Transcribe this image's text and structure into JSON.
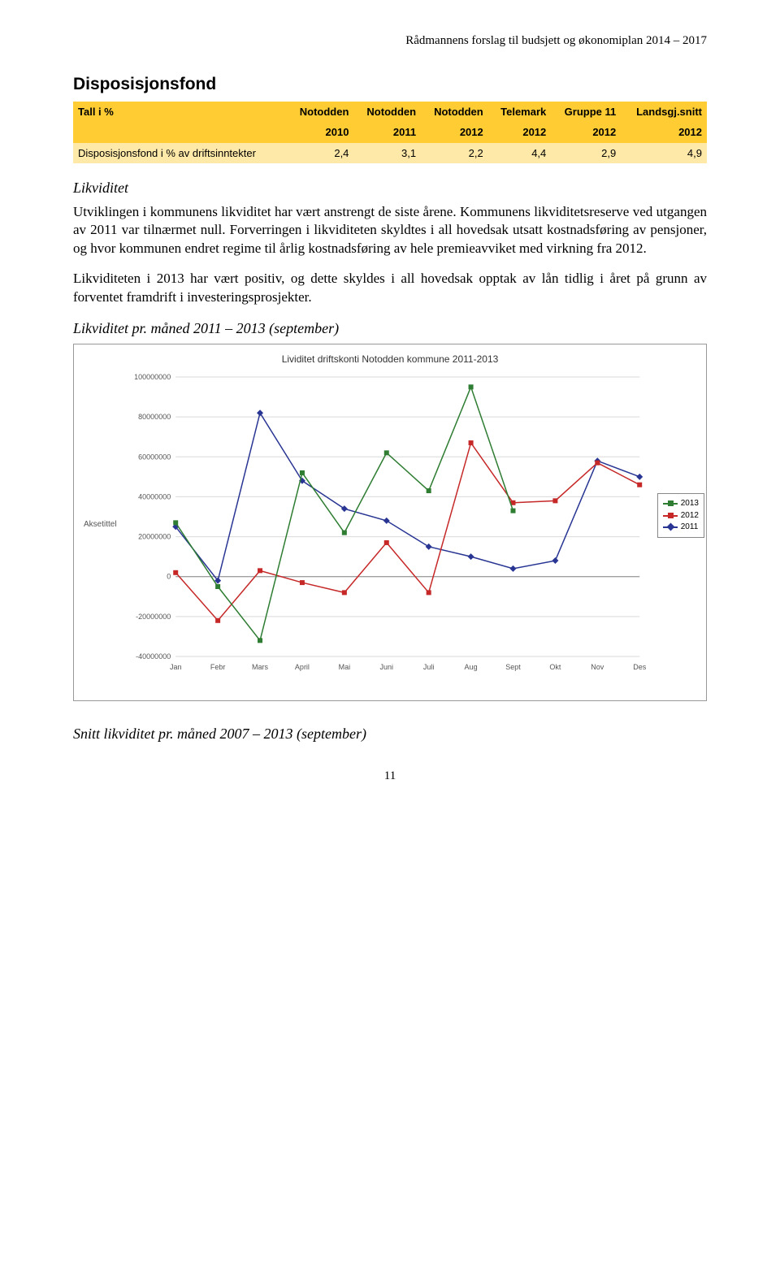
{
  "header": "Rådmannens forslag til budsjett og økonomiplan 2014 – 2017",
  "section_title": "Disposisjonsfond",
  "table": {
    "row1_label": "Tall i %",
    "cols_top": [
      "Notodden",
      "Notodden",
      "Notodden",
      "Telemark",
      "Gruppe 11",
      "Landsgj.snitt"
    ],
    "cols_bot": [
      "2010",
      "2011",
      "2012",
      "2012",
      "2012",
      "2012"
    ],
    "data_label": "Disposisjonsfond i % av driftsinntekter",
    "data_vals": [
      "2,4",
      "3,1",
      "2,2",
      "4,4",
      "2,9",
      "4,9"
    ],
    "row_yellow_bg": "#ffcc33",
    "row_pale_bg": "#ffe9a8"
  },
  "likviditet_heading": "Likviditet",
  "para1": "Utviklingen i kommunens likviditet har vært anstrengt de siste årene. Kommunens likviditetsreserve ved utgangen av 2011 var tilnærmet null. Forverringen i likviditeten skyldtes i all hovedsak utsatt kostnadsføring av pensjoner, og hvor kommunen endret regime til årlig kostnadsføring av hele premieavviket med virkning fra 2012.",
  "para2": "Likviditeten i 2013 har vært positiv, og dette skyldes i all hovedsak opptak av lån tidlig i året på grunn av forventet framdrift i investeringsprosjekter.",
  "chart_heading": "Likviditet pr. måned 2011 – 2013 (september)",
  "chart": {
    "title": "Lividitet driftskonti Notodden kommune 2011-2013",
    "y_label": "Aksetittel",
    "y_min": -40000000,
    "y_max": 100000000,
    "y_tick_step": 20000000,
    "y_ticks": [
      "100000000",
      "80000000",
      "60000000",
      "40000000",
      "20000000",
      "0",
      "-20000000",
      "-40000000"
    ],
    "x_labels": [
      "Jan",
      "Febr",
      "Mars",
      "April",
      "Mai",
      "Juni",
      "Juli",
      "Aug",
      "Sept",
      "Okt",
      "Nov",
      "Des"
    ],
    "grid_color": "#d9d9d9",
    "series": {
      "2013": {
        "color": "#2e7d32",
        "marker": "square",
        "vals": [
          27000000,
          -5000000,
          -32000000,
          52000000,
          22000000,
          62000000,
          43000000,
          95000000,
          33000000,
          null,
          null,
          null
        ]
      },
      "2012": {
        "color": "#c62828",
        "marker": "square",
        "vals": [
          2000000,
          -22000000,
          3000000,
          -3000000,
          -8000000,
          17000000,
          -8000000,
          67000000,
          37000000,
          38000000,
          57000000,
          46000000
        ]
      },
      "2011": {
        "color": "#283593",
        "marker": "diamond",
        "vals": [
          25000000,
          -2000000,
          82000000,
          48000000,
          34000000,
          28000000,
          15000000,
          10000000,
          4000000,
          8000000,
          58000000,
          50000000
        ]
      }
    },
    "legend_order": [
      "2013",
      "2012",
      "2011"
    ]
  },
  "footer_heading": "Snitt likviditet pr. måned 2007 – 2013 (september)",
  "page_number": "11"
}
